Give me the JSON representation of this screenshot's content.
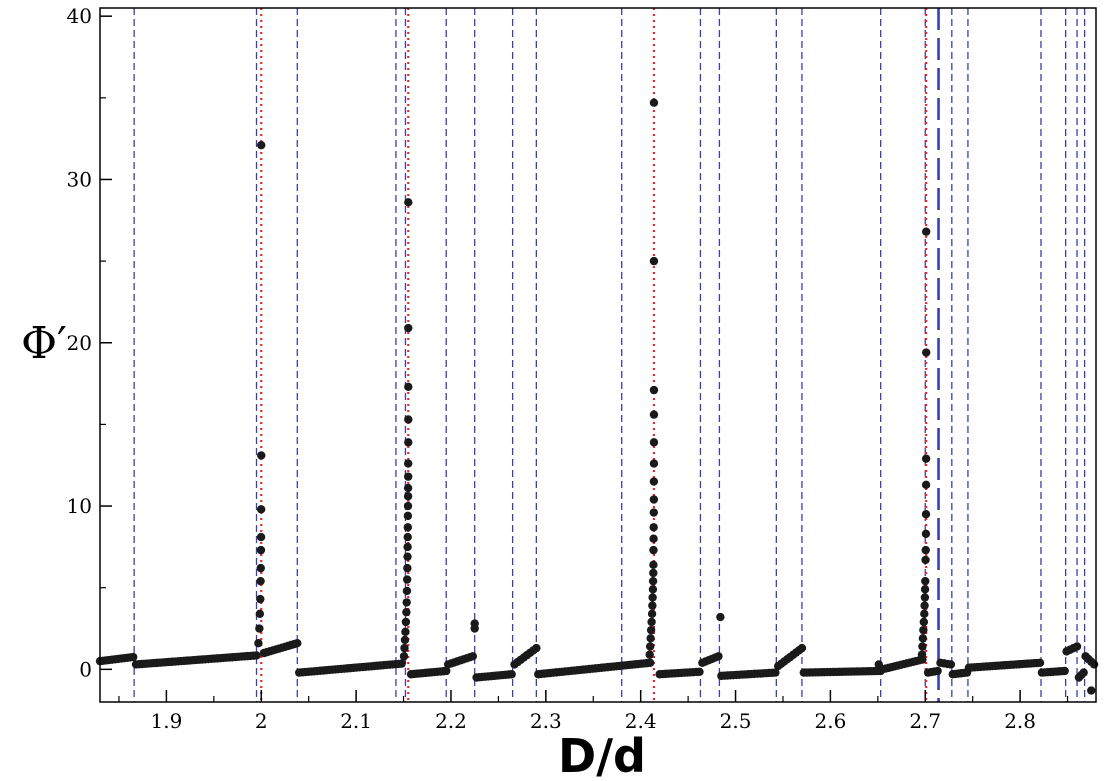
{
  "chart_data": {
    "type": "scatter",
    "xlabel": "D/d",
    "ylabel": "Φ′",
    "xlim": [
      1.83,
      2.88
    ],
    "ylim": [
      -2,
      40.5
    ],
    "xticks": [
      "1.9",
      "2",
      "2.1",
      "2.2",
      "2.3",
      "2.4",
      "2.5",
      "2.6",
      "2.7",
      "2.8"
    ],
    "yticks": [
      "0",
      "10",
      "20",
      "30",
      "40"
    ],
    "grid": false,
    "legend": "none",
    "colors": {
      "points": "#1a1a1a",
      "blue_lines": "#3b3fa8",
      "red_lines": "#e8262a"
    },
    "blue_dashed_lines": [
      1.866,
      1.995,
      2.038,
      2.142,
      2.152,
      2.195,
      2.225,
      2.265,
      2.29,
      2.38,
      2.463,
      2.483,
      2.543,
      2.57,
      2.653,
      2.7,
      2.728,
      2.745,
      2.822,
      2.848,
      2.86,
      2.868
    ],
    "blue_long_dashed_lines": [
      2.714
    ],
    "red_dotted_lines": [
      2.0,
      2.155,
      2.414,
      2.701
    ],
    "segments": [
      {
        "x": [
          1.83,
          1.865
        ],
        "y": [
          0.5,
          0.75
        ]
      },
      {
        "x": [
          1.868,
          1.995
        ],
        "y": [
          0.3,
          0.85
        ]
      },
      {
        "x": [
          2.003,
          2.038
        ],
        "y": [
          1.0,
          1.6
        ]
      },
      {
        "x": [
          2.04,
          2.148
        ],
        "y": [
          -0.2,
          0.35
        ]
      },
      {
        "x": [
          2.158,
          2.195
        ],
        "y": [
          -0.3,
          -0.1
        ]
      },
      {
        "x": [
          2.197,
          2.223
        ],
        "y": [
          0.3,
          0.8
        ]
      },
      {
        "x": [
          2.227,
          2.264
        ],
        "y": [
          -0.5,
          -0.3
        ]
      },
      {
        "x": [
          2.267,
          2.29
        ],
        "y": [
          0.3,
          1.3
        ]
      },
      {
        "x": [
          2.292,
          2.41
        ],
        "y": [
          -0.3,
          0.4
        ]
      },
      {
        "x": [
          2.42,
          2.462
        ],
        "y": [
          -0.3,
          -0.15
        ]
      },
      {
        "x": [
          2.465,
          2.482
        ],
        "y": [
          0.4,
          0.8
        ]
      },
      {
        "x": [
          2.485,
          2.542
        ],
        "y": [
          -0.4,
          -0.2
        ]
      },
      {
        "x": [
          2.545,
          2.57
        ],
        "y": [
          0.2,
          1.3
        ]
      },
      {
        "x": [
          2.572,
          2.653
        ],
        "y": [
          -0.2,
          -0.1
        ]
      },
      {
        "x": [
          2.655,
          2.697
        ],
        "y": [
          0,
          0.6
        ]
      },
      {
        "x": [
          2.703,
          2.713
        ],
        "y": [
          -0.2,
          -0.1
        ]
      },
      {
        "x": [
          2.716,
          2.727
        ],
        "y": [
          0.4,
          0.3
        ]
      },
      {
        "x": [
          2.729,
          2.744
        ],
        "y": [
          -0.3,
          -0.2
        ]
      },
      {
        "x": [
          2.746,
          2.821
        ],
        "y": [
          0.1,
          0.4
        ]
      },
      {
        "x": [
          2.823,
          2.847
        ],
        "y": [
          -0.2,
          -0.1
        ]
      },
      {
        "x": [
          2.849,
          2.86
        ],
        "y": [
          1.1,
          1.4
        ]
      },
      {
        "x": [
          2.862,
          2.867
        ],
        "y": [
          -0.5,
          -0.2
        ]
      },
      {
        "x": [
          2.869,
          2.878
        ],
        "y": [
          0.8,
          0.3
        ]
      }
    ],
    "points": [
      [
        1.997,
        1.6
      ],
      [
        1.998,
        2.5
      ],
      [
        1.9985,
        3.4
      ],
      [
        1.999,
        4.3
      ],
      [
        1.9993,
        5.4
      ],
      [
        1.9995,
        6.2
      ],
      [
        1.9997,
        7.3
      ],
      [
        1.9998,
        8.1
      ],
      [
        1.9999,
        9.8
      ],
      [
        2.0,
        13.1
      ],
      [
        2.0,
        32.1
      ],
      [
        2.1505,
        0.8
      ],
      [
        2.151,
        1.3
      ],
      [
        2.1515,
        1.8
      ],
      [
        2.152,
        2.3
      ],
      [
        2.1525,
        2.9
      ],
      [
        2.153,
        3.5
      ],
      [
        2.1533,
        4.1
      ],
      [
        2.1536,
        4.8
      ],
      [
        2.1538,
        5.5
      ],
      [
        2.154,
        6.2
      ],
      [
        2.1542,
        6.9
      ],
      [
        2.1543,
        7.5
      ],
      [
        2.1544,
        8.1
      ],
      [
        2.1545,
        8.7
      ],
      [
        2.1546,
        9.4
      ],
      [
        2.1547,
        10.0
      ],
      [
        2.1548,
        10.6
      ],
      [
        2.1548,
        11.1
      ],
      [
        2.1549,
        11.8
      ],
      [
        2.1549,
        12.6
      ],
      [
        2.155,
        13.9
      ],
      [
        2.155,
        15.3
      ],
      [
        2.155,
        17.3
      ],
      [
        2.155,
        20.9
      ],
      [
        2.155,
        28.6
      ],
      [
        2.4095,
        0.9
      ],
      [
        2.41,
        1.4
      ],
      [
        2.4105,
        1.9
      ],
      [
        2.411,
        2.4
      ],
      [
        2.4115,
        2.9
      ],
      [
        2.412,
        3.4
      ],
      [
        2.4123,
        3.9
      ],
      [
        2.4126,
        4.4
      ],
      [
        2.4129,
        4.9
      ],
      [
        2.4131,
        5.4
      ],
      [
        2.4133,
        5.9
      ],
      [
        2.4134,
        6.4
      ],
      [
        2.4135,
        7.3
      ],
      [
        2.4136,
        8.0
      ],
      [
        2.4137,
        8.7
      ],
      [
        2.4138,
        9.6
      ],
      [
        2.4139,
        10.4
      ],
      [
        2.4139,
        11.5
      ],
      [
        2.414,
        12.6
      ],
      [
        2.414,
        13.9
      ],
      [
        2.414,
        15.6
      ],
      [
        2.414,
        17.1
      ],
      [
        2.414,
        25.0
      ],
      [
        2.414,
        34.7
      ],
      [
        2.6965,
        0.9
      ],
      [
        2.697,
        1.4
      ],
      [
        2.6975,
        1.9
      ],
      [
        2.698,
        2.4
      ],
      [
        2.6985,
        2.9
      ],
      [
        2.699,
        3.4
      ],
      [
        2.6993,
        3.9
      ],
      [
        2.6996,
        4.4
      ],
      [
        2.6998,
        4.9
      ],
      [
        2.7,
        5.4
      ],
      [
        2.7003,
        6.7
      ],
      [
        2.7005,
        7.3
      ],
      [
        2.7007,
        8.3
      ],
      [
        2.7008,
        9.5
      ],
      [
        2.7009,
        11.3
      ],
      [
        2.7009,
        12.9
      ],
      [
        2.701,
        19.4
      ],
      [
        2.701,
        26.8
      ],
      [
        2.484,
        3.2
      ],
      [
        2.225,
        2.5
      ],
      [
        2.225,
        2.8
      ],
      [
        2.651,
        0.3
      ],
      [
        2.875,
        -1.3
      ]
    ]
  }
}
